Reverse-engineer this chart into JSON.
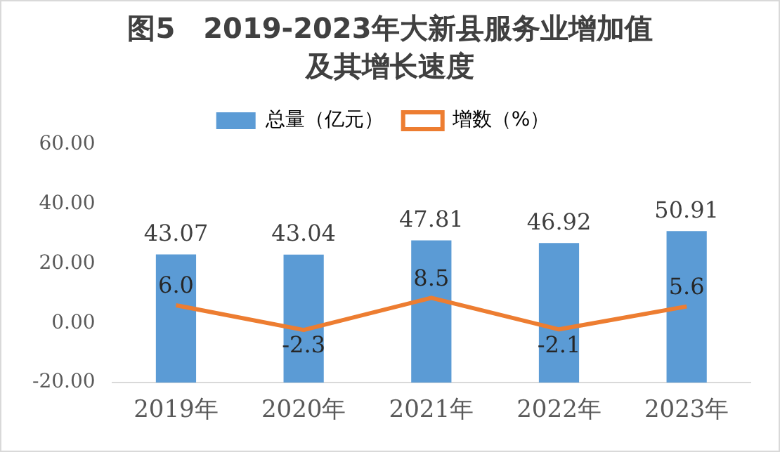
{
  "chart_data": {
    "type": "bar",
    "title": "图5　2019-2023年大新县服务业增加值及其增长速度",
    "categories": [
      "2019年",
      "2020年",
      "2021年",
      "2022年",
      "2023年"
    ],
    "series": [
      {
        "name": "总量（亿元）",
        "color": "#5b9bd5",
        "values": [
          43.07,
          43.04,
          47.81,
          46.92,
          50.91
        ],
        "base": [
          -20,
          -20,
          -20,
          -20,
          -20
        ],
        "value_labels": [
          "43.07",
          "43.04",
          "47.81",
          "46.92",
          "50.91"
        ]
      },
      {
        "name": "增数（%）",
        "type": "line",
        "color": "#ed7d31",
        "values": [
          6.0,
          -2.3,
          8.5,
          -2.1,
          5.6
        ],
        "value_labels": [
          "6.0",
          "-2.3",
          "8.5",
          "-2.1",
          "5.6"
        ]
      }
    ],
    "ylim": [
      -20,
      60
    ],
    "yticks": [
      {
        "value": -20,
        "label": "-20.00"
      },
      {
        "value": 0,
        "label": "0.00"
      },
      {
        "value": 20,
        "label": "20.00"
      },
      {
        "value": 40,
        "label": "40.00"
      },
      {
        "value": 60,
        "label": "60.00"
      }
    ],
    "grid": false,
    "legend": "top",
    "marker": "none"
  }
}
